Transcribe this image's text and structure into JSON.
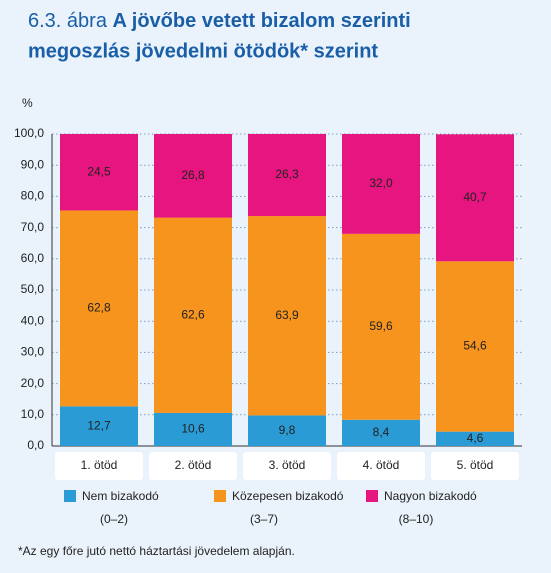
{
  "chart_data": {
    "type": "stacked_bar",
    "figure_label": "6.3. ábra",
    "title_lines": [
      "A jövőbe vetett bizalom szerinti",
      "megoszlás  jövedelmi ötödök* szerint"
    ],
    "y_unit": "%",
    "categories": [
      "1. ötöd",
      "2. ötöd",
      "3. ötöd",
      "4. ötöd",
      "5. ötöd"
    ],
    "series": [
      {
        "name": "Nem bizakodó",
        "range": "(0–2)",
        "color": "#2a9bd4",
        "values": [
          12.7,
          10.6,
          9.8,
          8.4,
          4.6
        ],
        "value_labels": [
          "12,7",
          "10,6",
          "9,8",
          "8,4",
          "4,6"
        ]
      },
      {
        "name": "Közepesen bizakodó",
        "range": "(3–7)",
        "color": "#f7941d",
        "values": [
          62.8,
          62.6,
          63.9,
          59.6,
          54.6
        ],
        "value_labels": [
          "62,8",
          "62,6",
          "63,9",
          "59,6",
          "54,6"
        ]
      },
      {
        "name": "Nagyon bizakodó",
        "range": "(8–10)",
        "color": "#e6157f",
        "values": [
          24.5,
          26.8,
          26.3,
          32.0,
          40.7
        ],
        "value_labels": [
          "24,5",
          "26,8",
          "26,3",
          "32,0",
          "40,7"
        ]
      }
    ],
    "ylim": [
      0,
      100
    ],
    "yticks": [
      {
        "value": 0,
        "label": "0,0"
      },
      {
        "value": 10,
        "label": "10,0"
      },
      {
        "value": 20,
        "label": "20,0"
      },
      {
        "value": 30,
        "label": "30,0"
      },
      {
        "value": 40,
        "label": "40,0"
      },
      {
        "value": 50,
        "label": "50,0"
      },
      {
        "value": 60,
        "label": "60,0"
      },
      {
        "value": 70,
        "label": "70,0"
      },
      {
        "value": 80,
        "label": "80,0"
      },
      {
        "value": 90,
        "label": "90,0"
      },
      {
        "value": 100,
        "label": "100,0"
      }
    ],
    "grid": true,
    "footnote": "*Az egy főre jutó nettó háztartási jövedelem alapján."
  }
}
